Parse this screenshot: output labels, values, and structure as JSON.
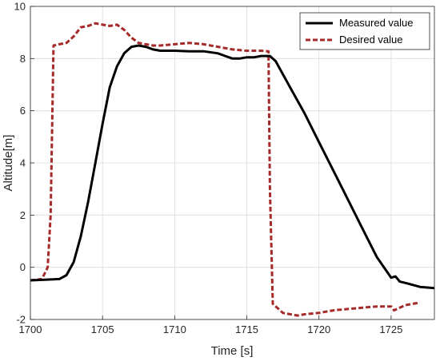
{
  "chart_data": {
    "type": "line",
    "title": "",
    "xlabel": "Time [s]",
    "ylabel": "Altitude[m]",
    "xlim": [
      1700,
      1728
    ],
    "ylim": [
      -2,
      10
    ],
    "xticks": [
      "1700",
      "1705",
      "1710",
      "1715",
      "1720",
      "1725"
    ],
    "yticks": [
      "-2",
      "0",
      "2",
      "4",
      "6",
      "8",
      "10"
    ],
    "grid": true,
    "legend_position": "top-right",
    "legend": [
      "Measured value",
      "Desired value"
    ],
    "series": [
      {
        "name": "Measured value",
        "color": "#000000",
        "style": "solid",
        "x": [
          1700,
          1701,
          1702,
          1702.5,
          1703,
          1703.5,
          1704,
          1704.5,
          1705,
          1705.5,
          1706,
          1706.5,
          1707,
          1707.5,
          1708,
          1708.5,
          1709,
          1710,
          1711,
          1712,
          1713,
          1713.5,
          1714,
          1714.5,
          1715,
          1715.5,
          1716,
          1716.6,
          1717,
          1718,
          1719,
          1720,
          1721,
          1722,
          1723,
          1724,
          1725,
          1725.3,
          1725.6,
          1726,
          1727,
          1728
        ],
        "y": [
          -0.5,
          -0.48,
          -0.45,
          -0.3,
          0.2,
          1.2,
          2.5,
          4.0,
          5.5,
          6.9,
          7.7,
          8.2,
          8.45,
          8.5,
          8.45,
          8.35,
          8.3,
          8.3,
          8.28,
          8.28,
          8.2,
          8.1,
          8.0,
          8.0,
          8.05,
          8.05,
          8.1,
          8.1,
          7.9,
          6.9,
          5.9,
          4.8,
          3.7,
          2.6,
          1.5,
          0.4,
          -0.4,
          -0.35,
          -0.55,
          -0.6,
          -0.75,
          -0.8
        ]
      },
      {
        "name": "Desired value",
        "color": "#a52a2a",
        "style": "dashed",
        "x": [
          1700,
          1700.8,
          1701.2,
          1701.4,
          1701.6,
          1702,
          1702.5,
          1703,
          1703.5,
          1704,
          1704.5,
          1705,
          1705.5,
          1706,
          1706.5,
          1707,
          1707.5,
          1708,
          1708.5,
          1709,
          1710,
          1711,
          1712,
          1713,
          1714,
          1715,
          1716,
          1716.5,
          1716.6,
          1716.8,
          1717.5,
          1718.5,
          1719,
          1720,
          1721,
          1722,
          1723,
          1724,
          1725,
          1725.2,
          1726,
          1727
        ],
        "y": [
          -0.5,
          -0.45,
          0.0,
          2.0,
          8.5,
          8.55,
          8.6,
          8.85,
          9.2,
          9.25,
          9.35,
          9.3,
          9.25,
          9.3,
          9.1,
          8.8,
          8.6,
          8.55,
          8.5,
          8.5,
          8.55,
          8.6,
          8.55,
          8.45,
          8.35,
          8.3,
          8.3,
          8.28,
          3.0,
          -1.4,
          -1.75,
          -1.85,
          -1.8,
          -1.75,
          -1.65,
          -1.6,
          -1.55,
          -1.5,
          -1.5,
          -1.65,
          -1.45,
          -1.35
        ]
      }
    ]
  }
}
